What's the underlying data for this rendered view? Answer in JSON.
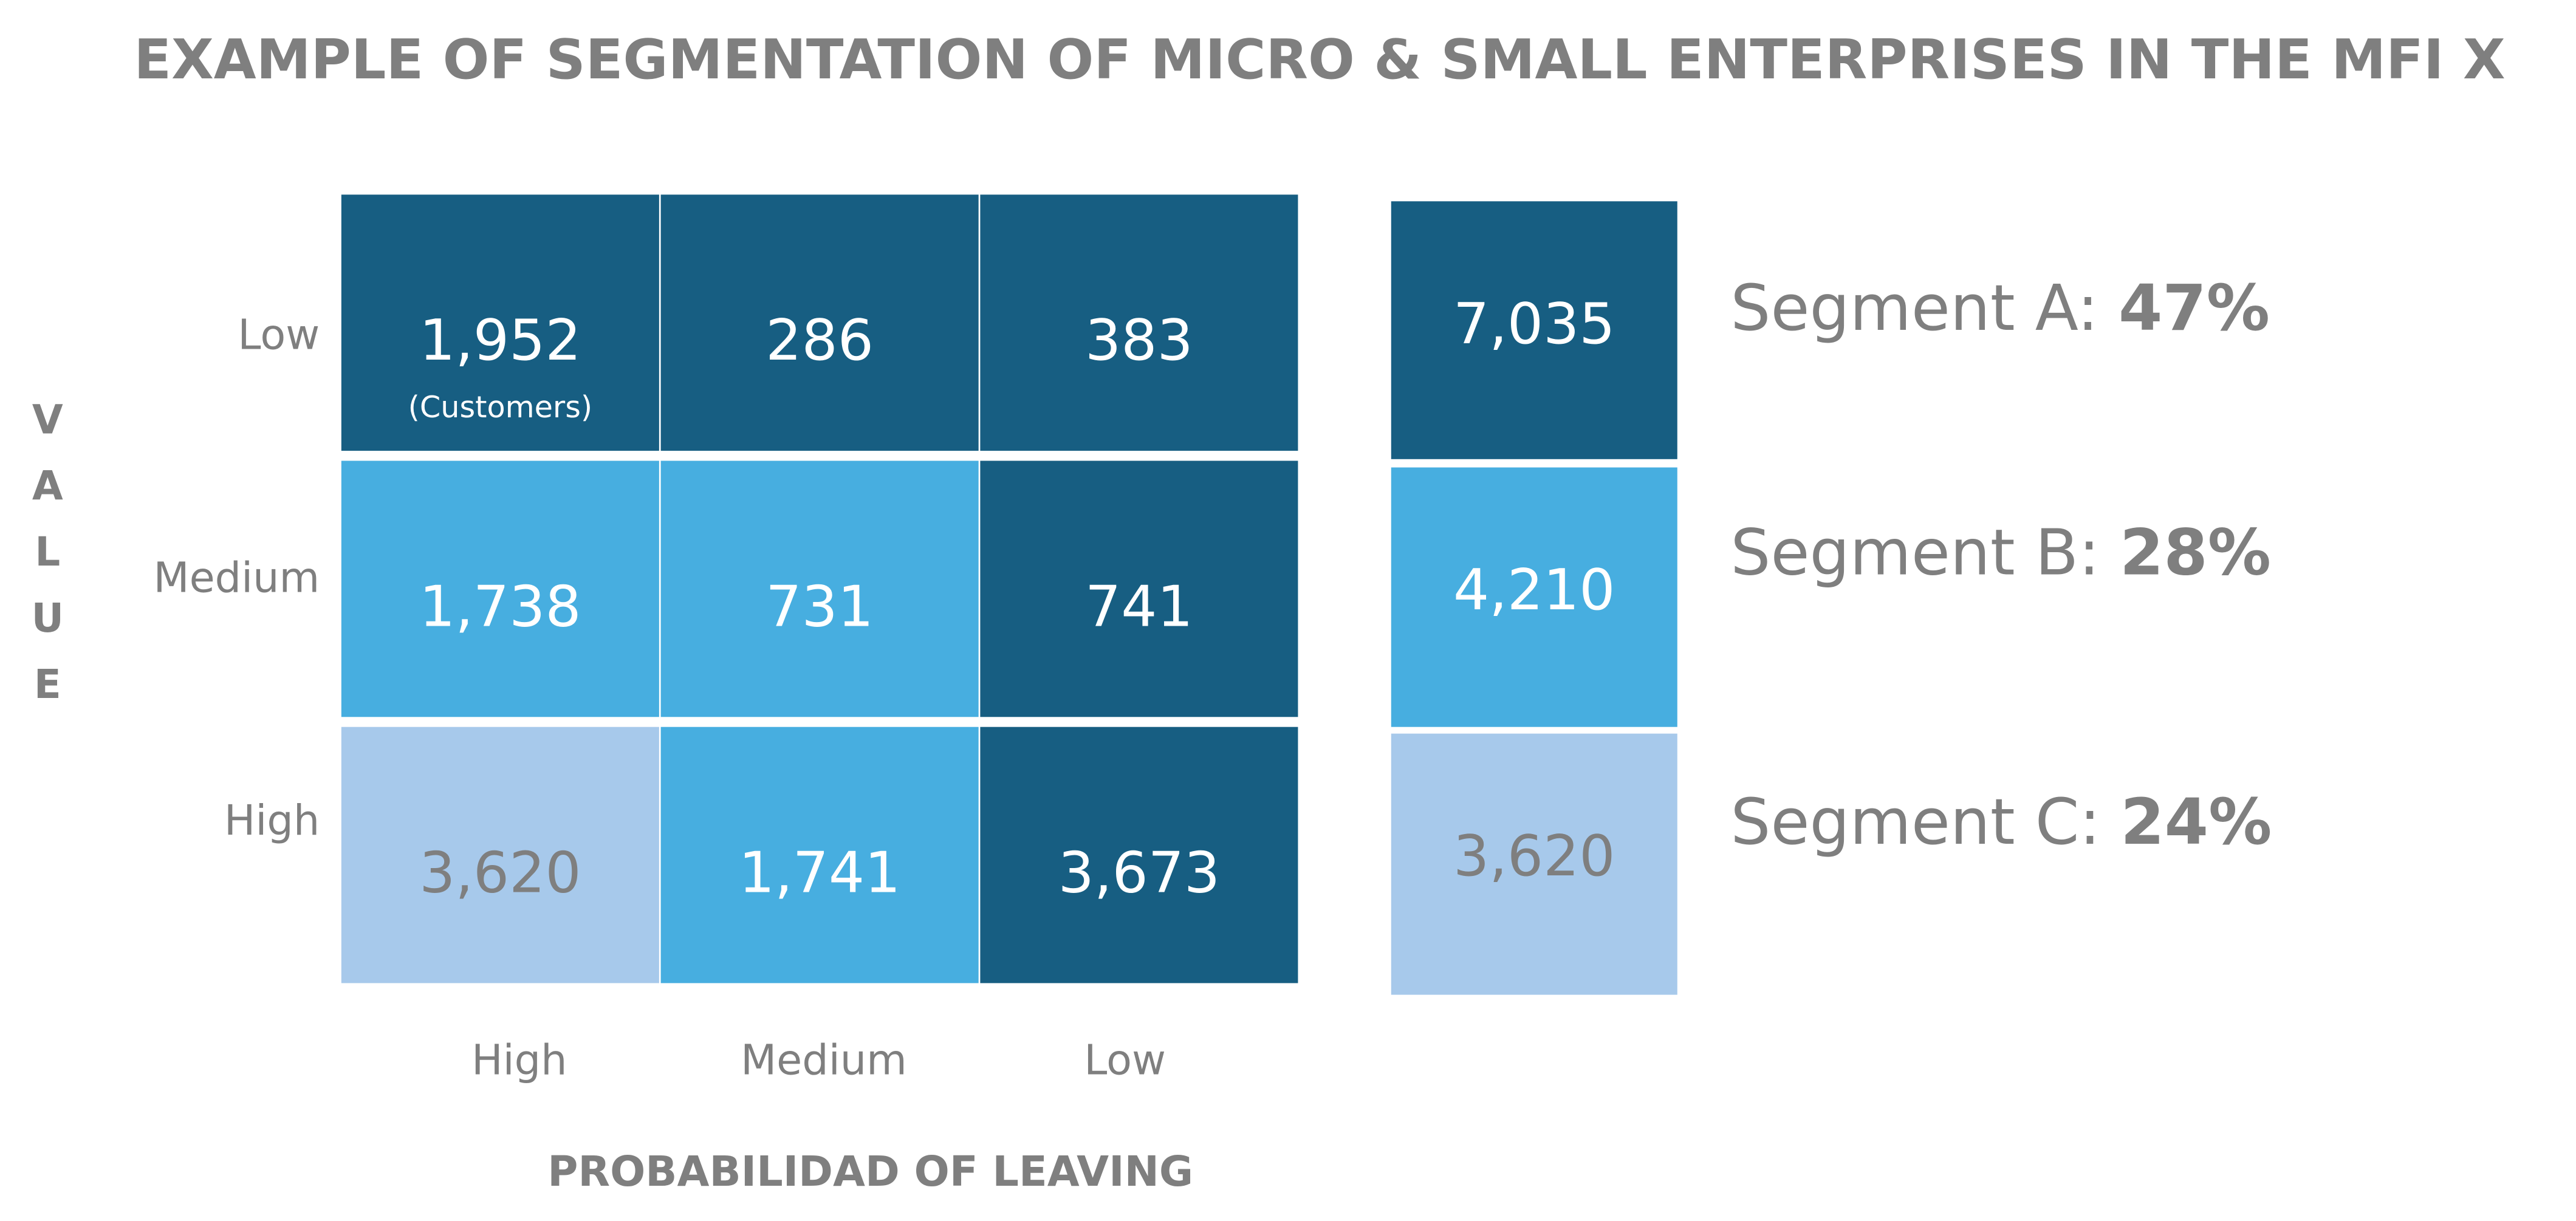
{
  "title": "EXAMPLE OF SEGMENTATION OF MICRO & SMALL ENTERPRISES IN THE MFI  X",
  "y_axis_title": "VALUE",
  "x_axis_title": "PROBABILIDAD OF LEAVING",
  "row_labels": [
    "Low",
    "Medium",
    "High"
  ],
  "column_labels": [
    "High",
    "Medium",
    "Low"
  ],
  "grid": {
    "rows": [
      [
        {
          "value": "1,952",
          "note": "(Customers)",
          "color": "#175e82"
        },
        {
          "value": "286",
          "color": "#175e82"
        },
        {
          "value": "383",
          "color": "#175e82"
        }
      ],
      [
        {
          "value": "1,738",
          "color": "#47aee0"
        },
        {
          "value": "731",
          "color": "#47aee0"
        },
        {
          "value": "741",
          "color": "#175e82"
        }
      ],
      [
        {
          "value": "3,620",
          "color": "#a7c9eb"
        },
        {
          "value": "1,741",
          "color": "#47aee0"
        },
        {
          "value": "3,673",
          "color": "#175e82"
        }
      ]
    ]
  },
  "segments": [
    {
      "total": "7,035",
      "label": "Segment A:",
      "share": "47%",
      "color": "#175e82"
    },
    {
      "total": "4,210",
      "label": "Segment B:",
      "share": "28%",
      "color": "#47aee0"
    },
    {
      "total": "3,620",
      "label": "Segment C:",
      "share": "24%",
      "color": "#a7c9eb"
    }
  ]
}
